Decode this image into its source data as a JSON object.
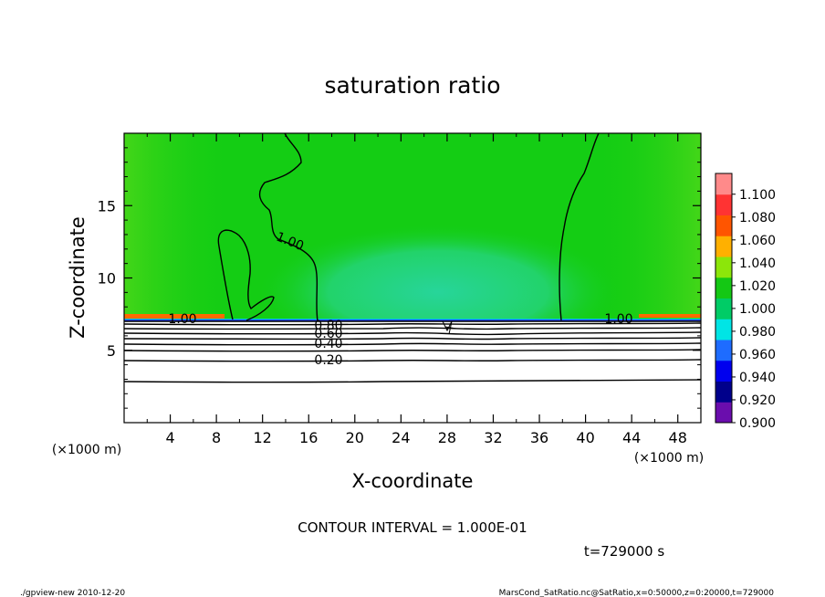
{
  "chart_data": {
    "type": "heatmap",
    "title": "saturation ratio",
    "xlabel": "X-coordinate",
    "ylabel": "Z-coordinate",
    "x_unit": "(×1000 m)",
    "z_unit": "(×1000 m)",
    "xlim": [
      0,
      50
    ],
    "ylim": [
      0,
      20
    ],
    "xticks": [
      4,
      8,
      12,
      16,
      20,
      24,
      28,
      32,
      36,
      40,
      44,
      48
    ],
    "yticks": [
      5,
      10,
      15
    ],
    "colorbar": {
      "levels": [
        "0.900",
        "0.920",
        "0.940",
        "0.960",
        "0.980",
        "1.000",
        "1.020",
        "1.040",
        "1.060",
        "1.080",
        "1.100"
      ],
      "colors": [
        "#6a0dad",
        "#00008b",
        "#0000ee",
        "#1e6cff",
        "#00e5e5",
        "#00cc66",
        "#14c814",
        "#8ce60a",
        "#ffb000",
        "#ff5500",
        "#ff3333",
        "#ff8a8a"
      ]
    },
    "contour_interval_text": "CONTOUR INTERVAL = 1.000E-01",
    "contour_labels": [
      "1.00",
      "1.00",
      "1.00",
      "0.80",
      "0.60",
      "0.40",
      "0.20"
    ],
    "time_label": "t=729000 s",
    "footer_left": "./gpview-new   2010-12-20",
    "footer_right": "MarsCond_SatRatio.nc@SatRatio,x=0:50000,z=0:20000,t=729000"
  },
  "colors": {
    "green": "#14cd14",
    "light_green": "#1ed21e",
    "cyan_green": "#24d67a",
    "hot": "#ff6a00"
  }
}
